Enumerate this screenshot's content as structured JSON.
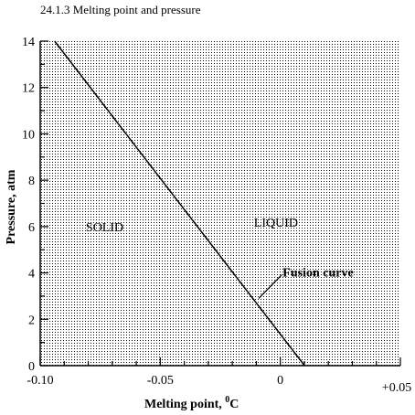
{
  "caption": "24.1.3 Melting point and pressure",
  "chart_data": {
    "type": "line",
    "xlabel": "Melting point,",
    "xlabel_sup": "0",
    "xlabel_unit": "C",
    "ylabel": "Pressure, atm",
    "xlim": [
      -0.1,
      0.05
    ],
    "ylim": [
      0,
      14
    ],
    "x_ticks": [
      {
        "value": -0.1,
        "label": "-0.10"
      },
      {
        "value": -0.05,
        "label": "-0.05"
      },
      {
        "value": 0,
        "label": "0"
      },
      {
        "value": 0.05,
        "label": "+0.05"
      }
    ],
    "y_ticks": [
      {
        "value": 0,
        "label": "0"
      },
      {
        "value": 2,
        "label": "2"
      },
      {
        "value": 4,
        "label": "4"
      },
      {
        "value": 6,
        "label": "6"
      },
      {
        "value": 8,
        "label": "8"
      },
      {
        "value": 10,
        "label": "10"
      },
      {
        "value": 12,
        "label": "12"
      },
      {
        "value": 14,
        "label": "14"
      }
    ],
    "series": [
      {
        "name": "Fusion curve",
        "x": [
          -0.094,
          0.0101
        ],
        "y": [
          14,
          0
        ]
      }
    ],
    "regions": [
      {
        "label": "SOLID",
        "x": -0.081,
        "y": 6
      },
      {
        "label": "LIQUID",
        "x": -0.011,
        "y": 6.2
      }
    ],
    "annotations": [
      {
        "label": "Fusion curve",
        "x": 0.001,
        "y": 4,
        "arrow_to": [
          -0.009,
          2.9
        ]
      }
    ],
    "grid": "dotted-fill"
  }
}
